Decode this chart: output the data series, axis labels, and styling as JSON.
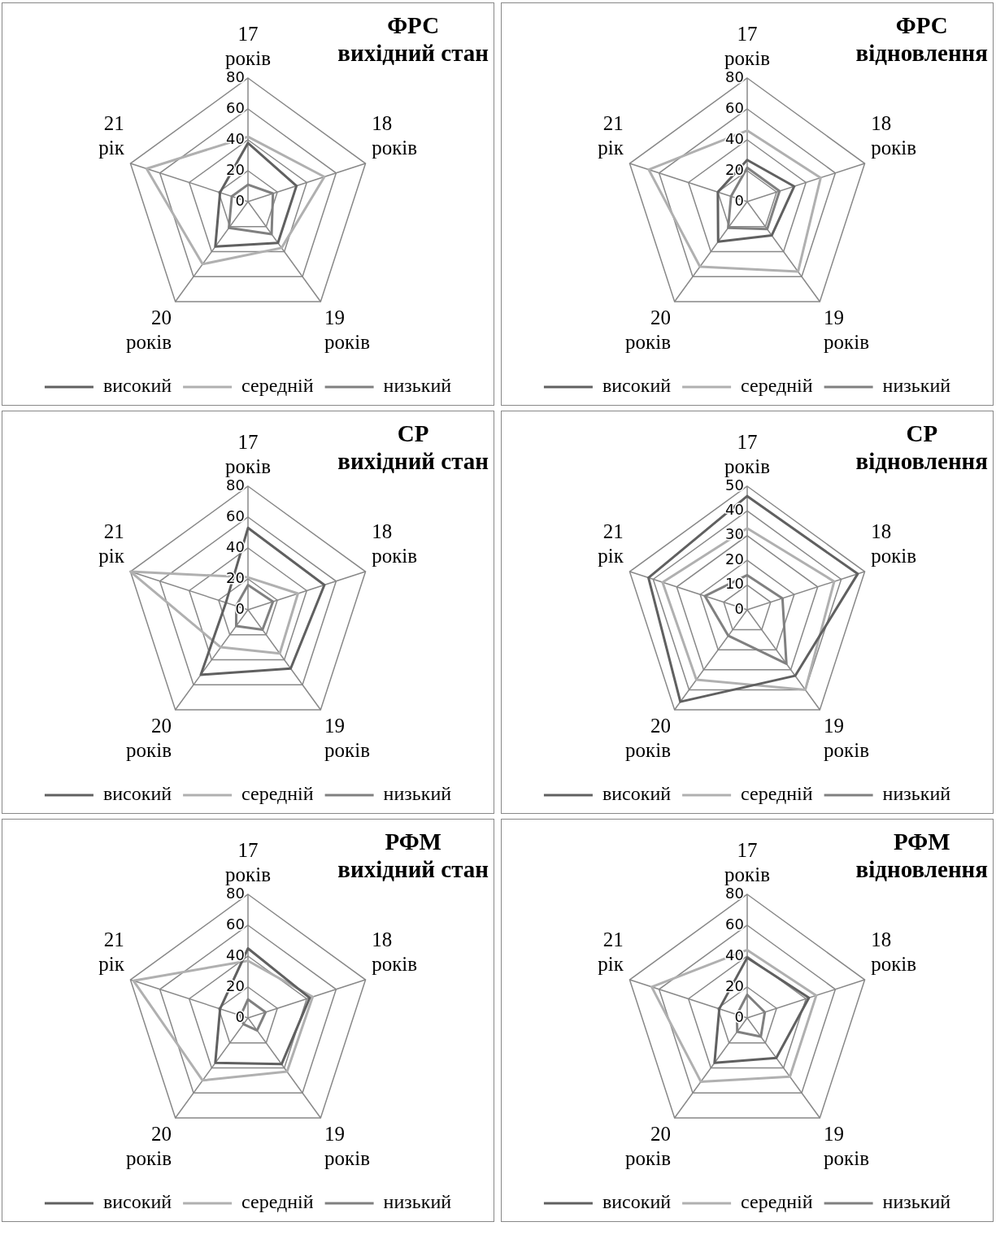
{
  "chart_data": [
    {
      "type": "radar",
      "title": "ФРС",
      "subtitle": "вихідний стан",
      "categories": [
        "17 років",
        "18 років",
        "19 років",
        "20 років",
        "21 рік"
      ],
      "series": [
        {
          "name": "високий",
          "color": "#606060",
          "values": [
            38,
            33,
            33,
            36,
            19
          ]
        },
        {
          "name": "середній",
          "color": "#b0b0b0",
          "values": [
            42,
            52,
            37,
            50,
            69
          ]
        },
        {
          "name": "низький",
          "color": "#808080",
          "values": [
            11,
            17,
            26,
            21,
            11
          ]
        }
      ],
      "ylim": [
        0,
        80
      ],
      "yticks": [
        0,
        20,
        40,
        60,
        80
      ],
      "grid": true,
      "legend": "bottom",
      "marker": "none"
    },
    {
      "type": "radar",
      "title": "ФРС",
      "subtitle": "відновлення",
      "categories": [
        "17 років",
        "18 років",
        "19 років",
        "20 років",
        "21 рік"
      ],
      "series": [
        {
          "name": "високий",
          "color": "#606060",
          "values": [
            27,
            32,
            27,
            32,
            20
          ]
        },
        {
          "name": "середній",
          "color": "#b0b0b0",
          "values": [
            46,
            50,
            56,
            52,
            67
          ]
        },
        {
          "name": "низький",
          "color": "#808080",
          "values": [
            22,
            22,
            22,
            21,
            11
          ]
        }
      ],
      "ylim": [
        0,
        80
      ],
      "yticks": [
        0,
        20,
        40,
        60,
        80
      ],
      "grid": true,
      "legend": "bottom",
      "marker": "none"
    },
    {
      "type": "radar",
      "title": "СР",
      "subtitle": "вихідний стан",
      "categories": [
        "17 років",
        "18 років",
        "19 років",
        "20 років",
        "21 рік"
      ],
      "series": [
        {
          "name": "високий",
          "color": "#606060",
          "values": [
            53,
            52,
            47,
            52,
            15
          ]
        },
        {
          "name": "середній",
          "color": "#b0b0b0",
          "values": [
            21,
            34,
            35,
            30,
            80
          ]
        },
        {
          "name": "низький",
          "color": "#808080",
          "values": [
            16,
            17,
            16,
            13,
            8
          ]
        }
      ],
      "ylim": [
        0,
        80
      ],
      "yticks": [
        0,
        20,
        40,
        60,
        80
      ],
      "grid": true,
      "legend": "bottom",
      "marker": "none"
    },
    {
      "type": "radar",
      "title": "СР",
      "subtitle": "відновлення",
      "categories": [
        "17 років",
        "18 років",
        "19 років",
        "20 років",
        "21 рік"
      ],
      "series": [
        {
          "name": "високий",
          "color": "#606060",
          "values": [
            46,
            47,
            33,
            46,
            42
          ]
        },
        {
          "name": "середній",
          "color": "#b0b0b0",
          "values": [
            33,
            37,
            40,
            35,
            36
          ]
        },
        {
          "name": "низький",
          "color": "#808080",
          "values": [
            14,
            15,
            27,
            13,
            18
          ]
        }
      ],
      "ylim": [
        0,
        50
      ],
      "yticks": [
        0,
        10,
        20,
        30,
        40,
        50
      ],
      "grid": true,
      "legend": "bottom",
      "marker": "none"
    },
    {
      "type": "radar",
      "title": "РФМ",
      "subtitle": "вихідний стан",
      "categories": [
        "17 років",
        "18 років",
        "19 років",
        "20 років",
        "21 рік"
      ],
      "series": [
        {
          "name": "високий",
          "color": "#606060",
          "values": [
            45,
            42,
            37,
            36,
            19
          ]
        },
        {
          "name": "середній",
          "color": "#b0b0b0",
          "values": [
            37,
            44,
            43,
            50,
            78
          ]
        },
        {
          "name": "низький",
          "color": "#808080",
          "values": [
            12,
            12,
            10,
            5,
            5
          ]
        }
      ],
      "ylim": [
        0,
        80
      ],
      "yticks": [
        0,
        20,
        40,
        60,
        80
      ],
      "grid": true,
      "legend": "bottom",
      "marker": "none"
    },
    {
      "type": "radar",
      "title": "РФМ",
      "subtitle": "відновлення",
      "categories": [
        "17 років",
        "18 років",
        "19 років",
        "20 років",
        "21 рік"
      ],
      "series": [
        {
          "name": "високий",
          "color": "#606060",
          "values": [
            39,
            42,
            32,
            36,
            19
          ]
        },
        {
          "name": "середній",
          "color": "#b0b0b0",
          "values": [
            44,
            47,
            47,
            51,
            65
          ]
        },
        {
          "name": "низький",
          "color": "#808080",
          "values": [
            15,
            12,
            15,
            11,
            7
          ]
        }
      ],
      "ylim": [
        0,
        80
      ],
      "yticks": [
        0,
        20,
        40,
        60,
        80
      ],
      "grid": true,
      "legend": "bottom",
      "marker": "none"
    }
  ]
}
